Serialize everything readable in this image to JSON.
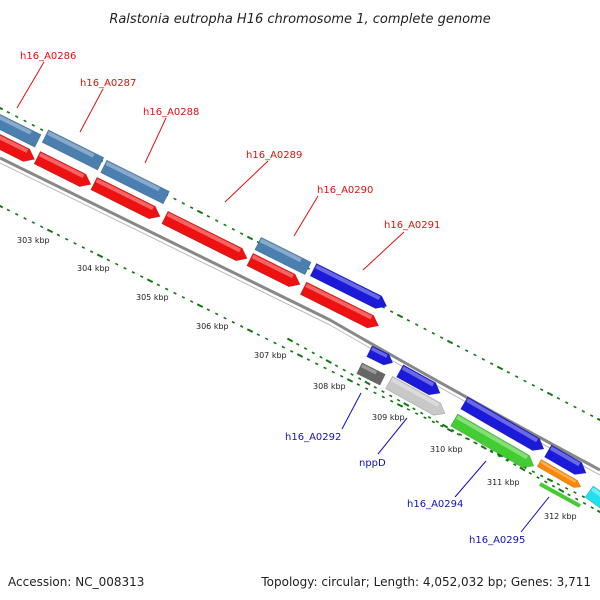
{
  "title": "Ralstonia eutropha H16 chromosome 1, complete genome",
  "footer": {
    "accession": "Accession: NC_008313",
    "summary": "Topology: circular; Length: 4,052,032 bp; Genes: 3,711"
  },
  "colors": {
    "label_forward": "#dd1111",
    "label_reverse": "#1111bb",
    "backbone": "#888888",
    "tick": "#117711",
    "steelblue": "#4a7fb0",
    "red": "#ee1111",
    "blue": "#1a1ad8",
    "gray_dark": "#666666",
    "gray_light": "#c8c8c8",
    "green": "#44cc33",
    "orange": "#ff8800",
    "cyan": "#22e0f0"
  },
  "gene_labels": [
    {
      "text": "h16_A0286",
      "strand": "forward"
    },
    {
      "text": "h16_A0287",
      "strand": "forward"
    },
    {
      "text": "h16_A0288",
      "strand": "forward"
    },
    {
      "text": "h16_A0289",
      "strand": "forward"
    },
    {
      "text": "h16_A0290",
      "strand": "forward"
    },
    {
      "text": "h16_A0291",
      "strand": "forward"
    },
    {
      "text": "h16_A0292",
      "strand": "reverse"
    },
    {
      "text": "nppD",
      "strand": "reverse"
    },
    {
      "text": "h16_A0294",
      "strand": "reverse"
    },
    {
      "text": "h16_A0295",
      "strand": "reverse"
    }
  ],
  "ticks": [
    "303 kbp",
    "304 kbp",
    "305 kbp",
    "306 kbp",
    "307 kbp",
    "308 kbp",
    "309 kbp",
    "310 kbp",
    "311 kbp",
    "312 kbp"
  ]
}
